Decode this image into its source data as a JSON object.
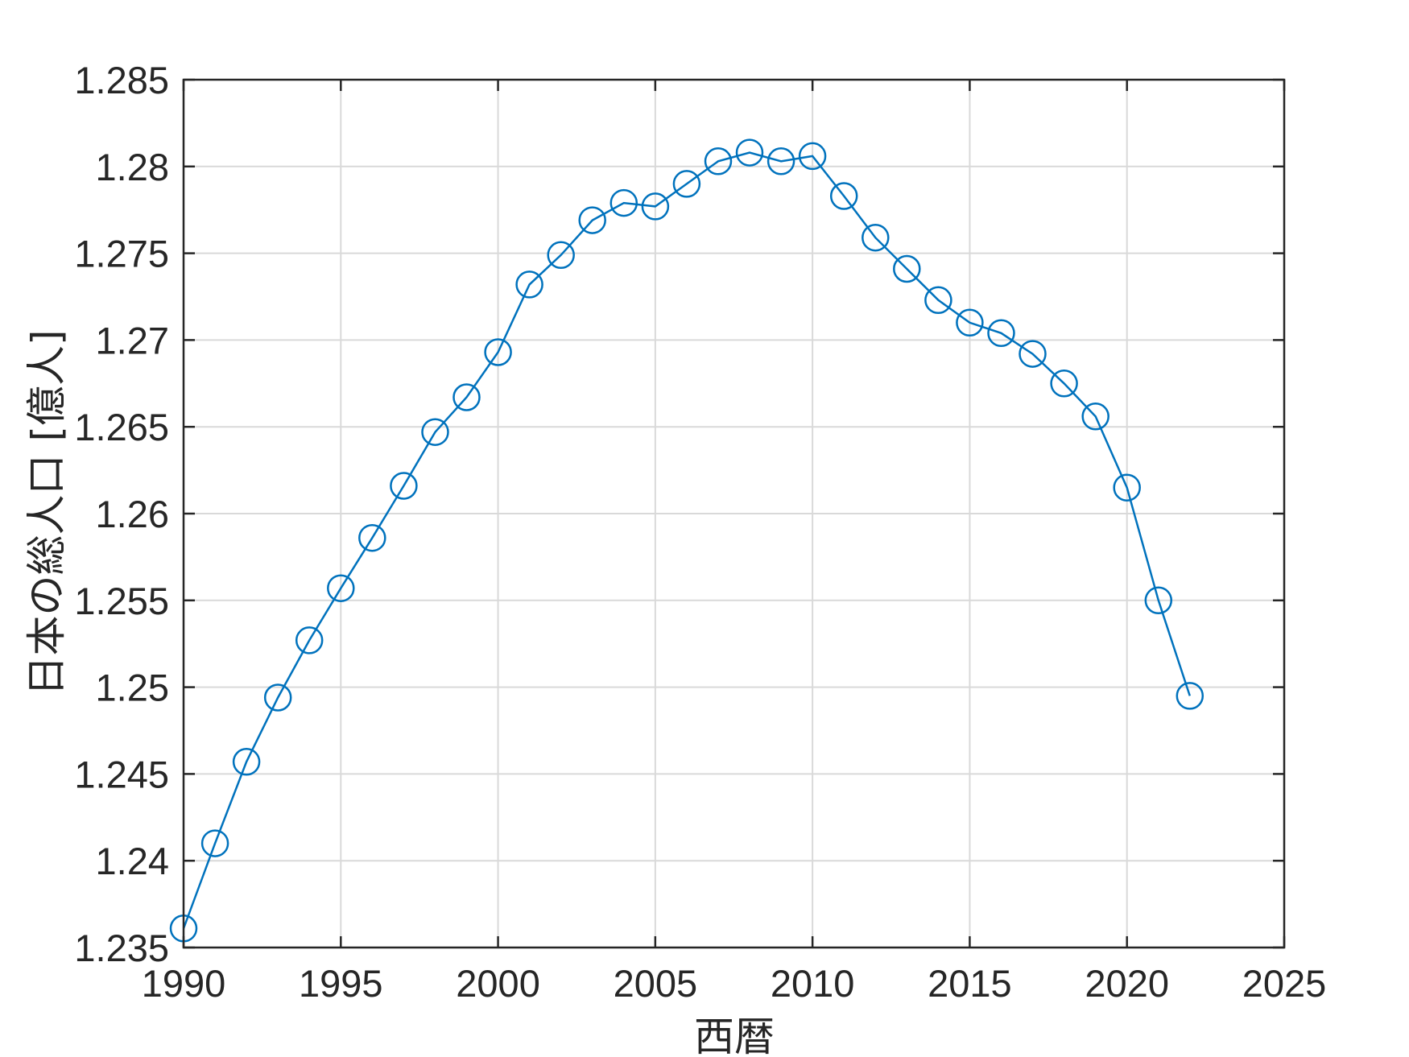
{
  "chart_data": {
    "type": "line",
    "xlabel": "西暦",
    "ylabel": "日本の総人口 [億人]",
    "xlim": [
      1990,
      2025
    ],
    "ylim": [
      1.235,
      1.285
    ],
    "xticks": [
      "1990",
      "1995",
      "2000",
      "2005",
      "2010",
      "2015",
      "2020",
      "2025"
    ],
    "yticks": [
      "1.235",
      "1.24",
      "1.245",
      "1.25",
      "1.255",
      "1.26",
      "1.265",
      "1.27",
      "1.275",
      "1.28",
      "1.285"
    ],
    "grid": true,
    "marker": "circle",
    "color": "#0072BD",
    "series": [
      {
        "x": [
          1990,
          1991,
          1992,
          1993,
          1994,
          1995,
          1996,
          1997,
          1998,
          1999,
          2000,
          2001,
          2002,
          2003,
          2004,
          2005,
          2006,
          2007,
          2008,
          2009,
          2010,
          2011,
          2012,
          2013,
          2014,
          2015,
          2016,
          2017,
          2018,
          2019,
          2020,
          2021,
          2022
        ],
        "y": [
          1.2361,
          1.241,
          1.2457,
          1.2494,
          1.2527,
          1.2557,
          1.2586,
          1.2616,
          1.2647,
          1.2667,
          1.2693,
          1.2732,
          1.2749,
          1.2769,
          1.2779,
          1.2777,
          1.279,
          1.2803,
          1.2808,
          1.2803,
          1.2806,
          1.2783,
          1.2759,
          1.2741,
          1.2723,
          1.271,
          1.2704,
          1.2692,
          1.2675,
          1.2656,
          1.2615,
          1.255,
          1.2495
        ]
      }
    ]
  }
}
